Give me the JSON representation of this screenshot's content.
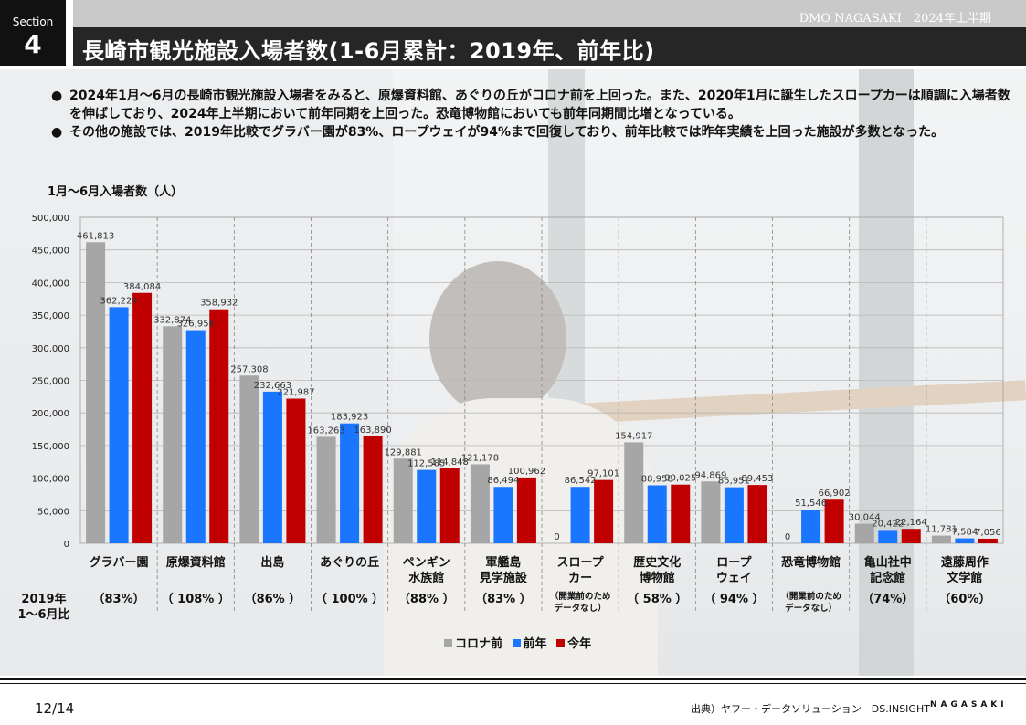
{
  "section": {
    "label": "Section",
    "number": "4"
  },
  "header": {
    "org": "DMO NAGASAKI　2024年上半期",
    "title": "長崎市観光施設入場者数(1-6月累計：2019年、前年比)"
  },
  "bullets": [
    "2024年1月～6月の長崎市観光施設入場者をみると、原爆資料館、あぐりの丘がコロナ前を上回った。また、2020年1月に誕生したスロープカーは順調に入場者数を伸ばしており、2024年上半期において前年同期を上回った。恐竜博物館においても前年同期間比増となっている。",
    "その他の施設では、2019年比較でグラバー園が83%、ロープウェイが94%まで回復しており、前年比較では昨年実績を上回った施設が多数となった。"
  ],
  "bullet_mark": "●",
  "chart_data": {
    "type": "bar",
    "ylabel": "1月～6月入場者数（人）",
    "ylim": [
      0,
      500000
    ],
    "yticks": [
      0,
      50000,
      100000,
      150000,
      200000,
      250000,
      300000,
      350000,
      400000,
      450000,
      500000
    ],
    "ytick_labels": [
      "0",
      "50,000",
      "100,000",
      "150,000",
      "200,000",
      "250,000",
      "300,000",
      "350,000",
      "400,000",
      "450,000",
      "500,000"
    ],
    "categories": [
      [
        "グラバー園"
      ],
      [
        "原爆資料館"
      ],
      [
        "出島"
      ],
      [
        "あぐりの丘"
      ],
      [
        "ペンギン",
        "水族館"
      ],
      [
        "軍艦島",
        "見学施設"
      ],
      [
        "スロープ",
        "カー"
      ],
      [
        "歴史文化",
        "博物館"
      ],
      [
        "ロープ",
        "ウェイ"
      ],
      [
        "恐竜博物館"
      ],
      [
        "亀山社中",
        "記念館"
      ],
      [
        "遠藤周作",
        "文学館"
      ]
    ],
    "series": [
      {
        "name": "コロナ前",
        "color": "#a6a6a6",
        "values": [
          461813,
          332874,
          257308,
          163263,
          129881,
          121178,
          0,
          154917,
          94869,
          0,
          30044,
          11781
        ],
        "labels": [
          "461,813",
          "332,874",
          "257,308",
          "163,263",
          "129,881",
          "121,178",
          "0",
          "154,917",
          "94,869",
          "0",
          "30,044",
          "11,781"
        ]
      },
      {
        "name": "前年",
        "color": "#1a75ff",
        "values": [
          362224,
          326956,
          232663,
          183923,
          112585,
          86494,
          86542,
          88958,
          85951,
          51546,
          20422,
          7584
        ],
        "labels": [
          "362,224",
          "326,956",
          "232,663",
          "183,923",
          "112,585",
          "86,494",
          "86,542",
          "88,958",
          "85,951",
          "51,546",
          "20,422",
          "7,584"
        ]
      },
      {
        "name": "今年",
        "color": "#c00000",
        "values": [
          384084,
          358932,
          221987,
          163890,
          114848,
          100962,
          97101,
          90025,
          89453,
          66902,
          22164,
          7056
        ],
        "labels": [
          "384,084",
          "358,932",
          "221,987",
          "163,890",
          "114,848",
          "100,962",
          "97,101",
          "90,025",
          "89,453",
          "66,902",
          "22,164",
          "7,056"
        ]
      }
    ],
    "ratio_header": [
      "2019年",
      "1～6月比"
    ],
    "ratios": [
      [
        "（83%）"
      ],
      [
        "（ 108% ）"
      ],
      [
        "（86% ）"
      ],
      [
        "（ 100% ）"
      ],
      [
        "（88% ）"
      ],
      [
        "（83% ）"
      ],
      [
        "（開業前のため",
        "データなし）"
      ],
      [
        "（ 58% ）"
      ],
      [
        "（ 94% ）"
      ],
      [
        "（開業前のため",
        "データなし）"
      ],
      [
        "（74%）"
      ],
      [
        "（60%）"
      ]
    ],
    "legend": "bottom"
  },
  "footer": {
    "page": "12/14",
    "source": "出典）ヤフー・データソリューション　DS.INSIGHT",
    "brand": "NAGASAKI"
  }
}
